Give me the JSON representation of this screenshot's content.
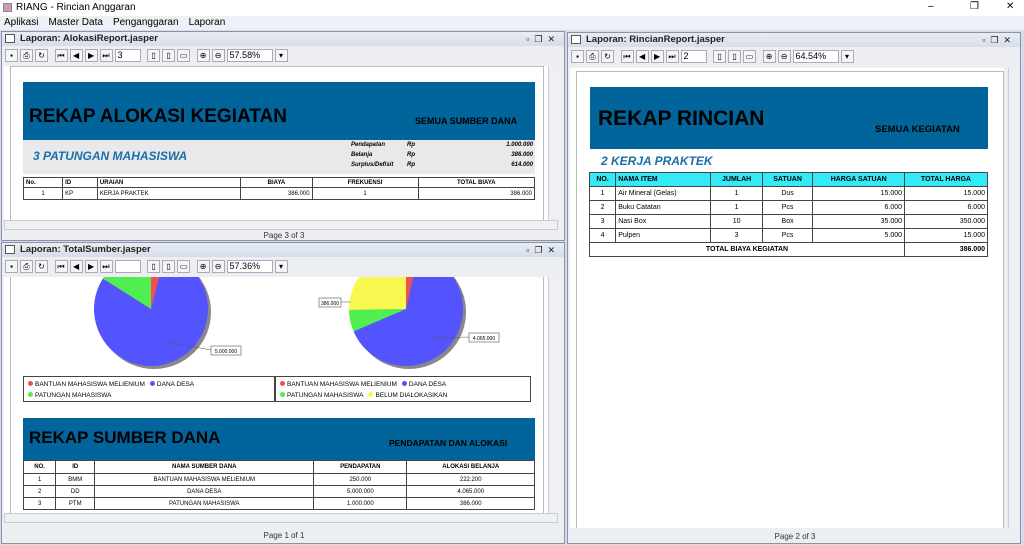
{
  "window": {
    "title": "RIANG - Rincian Anggaran",
    "controls": [
      "–",
      "❐",
      "✕"
    ]
  },
  "menu": [
    "Aplikasi",
    "Master Data",
    "Penganggaran",
    "Laporan"
  ],
  "frame1": {
    "title": "Laporan: AlokasiReport.jasper",
    "page_input": "3",
    "zoom": "57.58%",
    "status": "Page 3 of 3",
    "report": {
      "title": "REKAP ALOKASI KEGIATAN",
      "subtitle": "SEMUA SUMBER DANA",
      "section": "3   PATUNGAN MAHASISWA",
      "summary": [
        {
          "label": "Pendapatan",
          "cur": "Rp",
          "value": "1.000.000"
        },
        {
          "label": "Belanja",
          "cur": "Rp",
          "value": "386.000"
        },
        {
          "label": "Surplus/Defisit",
          "cur": "Rp",
          "value": "614.000"
        }
      ],
      "columns": [
        "No.",
        "ID",
        "URAIAN",
        "BIAYA",
        "FREKUENSI",
        "TOTAL BIAYA"
      ],
      "rows": [
        [
          "1",
          "KP",
          "KERJA PRAKTEK",
          "386.000",
          "1",
          "386.000"
        ]
      ]
    }
  },
  "frame2": {
    "title": "Laporan: TotalSumber.jasper",
    "page_input": "",
    "zoom": "57.36%",
    "status": "Page 1 of 1",
    "pie1": {
      "slices": [
        {
          "name": "BANTUAN MAHASISWA MELIENIUM",
          "value": 250000,
          "color": "#f05050"
        },
        {
          "name": "DANA DESA",
          "value": 5000000,
          "color": "#5454ff"
        },
        {
          "name": "PATUNGAN MAHASISWA",
          "value": 1000000,
          "color": "#50ee50"
        }
      ],
      "label": "5.000.000"
    },
    "pie2": {
      "slices": [
        {
          "name": "BANTUAN MAHASISWA MELIENIUM",
          "value": 222200,
          "color": "#f05050"
        },
        {
          "name": "DANA DESA",
          "value": 4065000,
          "color": "#5454ff"
        },
        {
          "name": "PATUNGAN MAHASISWA",
          "value": 386000,
          "color": "#50ee50"
        },
        {
          "name": "BELUM DIALOKASIKAN",
          "value": 1576800,
          "color": "#f8f850"
        }
      ],
      "labels": [
        "386.000",
        "4.065.000"
      ]
    },
    "report": {
      "title": "REKAP SUMBER DANA",
      "subtitle": "PENDAPATAN DAN ALOKASI",
      "columns": [
        "NO.",
        "ID",
        "NAMA SUMBER DANA",
        "PENDAPATAN",
        "ALOKASI BELANJA"
      ],
      "rows": [
        [
          "1",
          "BMM",
          "BANTUAN MAHASISWA MELIENIUM",
          "250.000",
          "222.200"
        ],
        [
          "2",
          "DD",
          "DANA DESA",
          "5.000.000",
          "4.065.000"
        ],
        [
          "3",
          "PTM",
          "PATUNGAN MAHASISWA",
          "1.000.000",
          "386.000"
        ]
      ]
    }
  },
  "frame3": {
    "title": "Laporan: RincianReport.jasper",
    "page_input": "2",
    "zoom": "64.54%",
    "status": "Page 2 of 3",
    "report": {
      "title": "REKAP RINCIAN",
      "subtitle": "SEMUA KEGIATAN",
      "section": "2   KERJA PRAKTEK",
      "columns": [
        "NO.",
        "NAMA ITEM",
        "JUMLAH",
        "SATUAN",
        "HARGA SATUAN",
        "TOTAL HARGA"
      ],
      "rows": [
        [
          "1",
          "Air Mineral (Gelas)",
          "1",
          "Dus",
          "15.000",
          "15.000"
        ],
        [
          "2",
          "Buku Catatan",
          "1",
          "Pcs",
          "6.000",
          "6.000"
        ],
        [
          "3",
          "Nasi Box",
          "10",
          "Box",
          "35.000",
          "350.000"
        ],
        [
          "4",
          "Pulpen",
          "3",
          "Pcs",
          "5.000",
          "15.000"
        ]
      ],
      "total_label": "TOTAL BIAYA KEGIATAN",
      "total_value": "386.000"
    }
  }
}
